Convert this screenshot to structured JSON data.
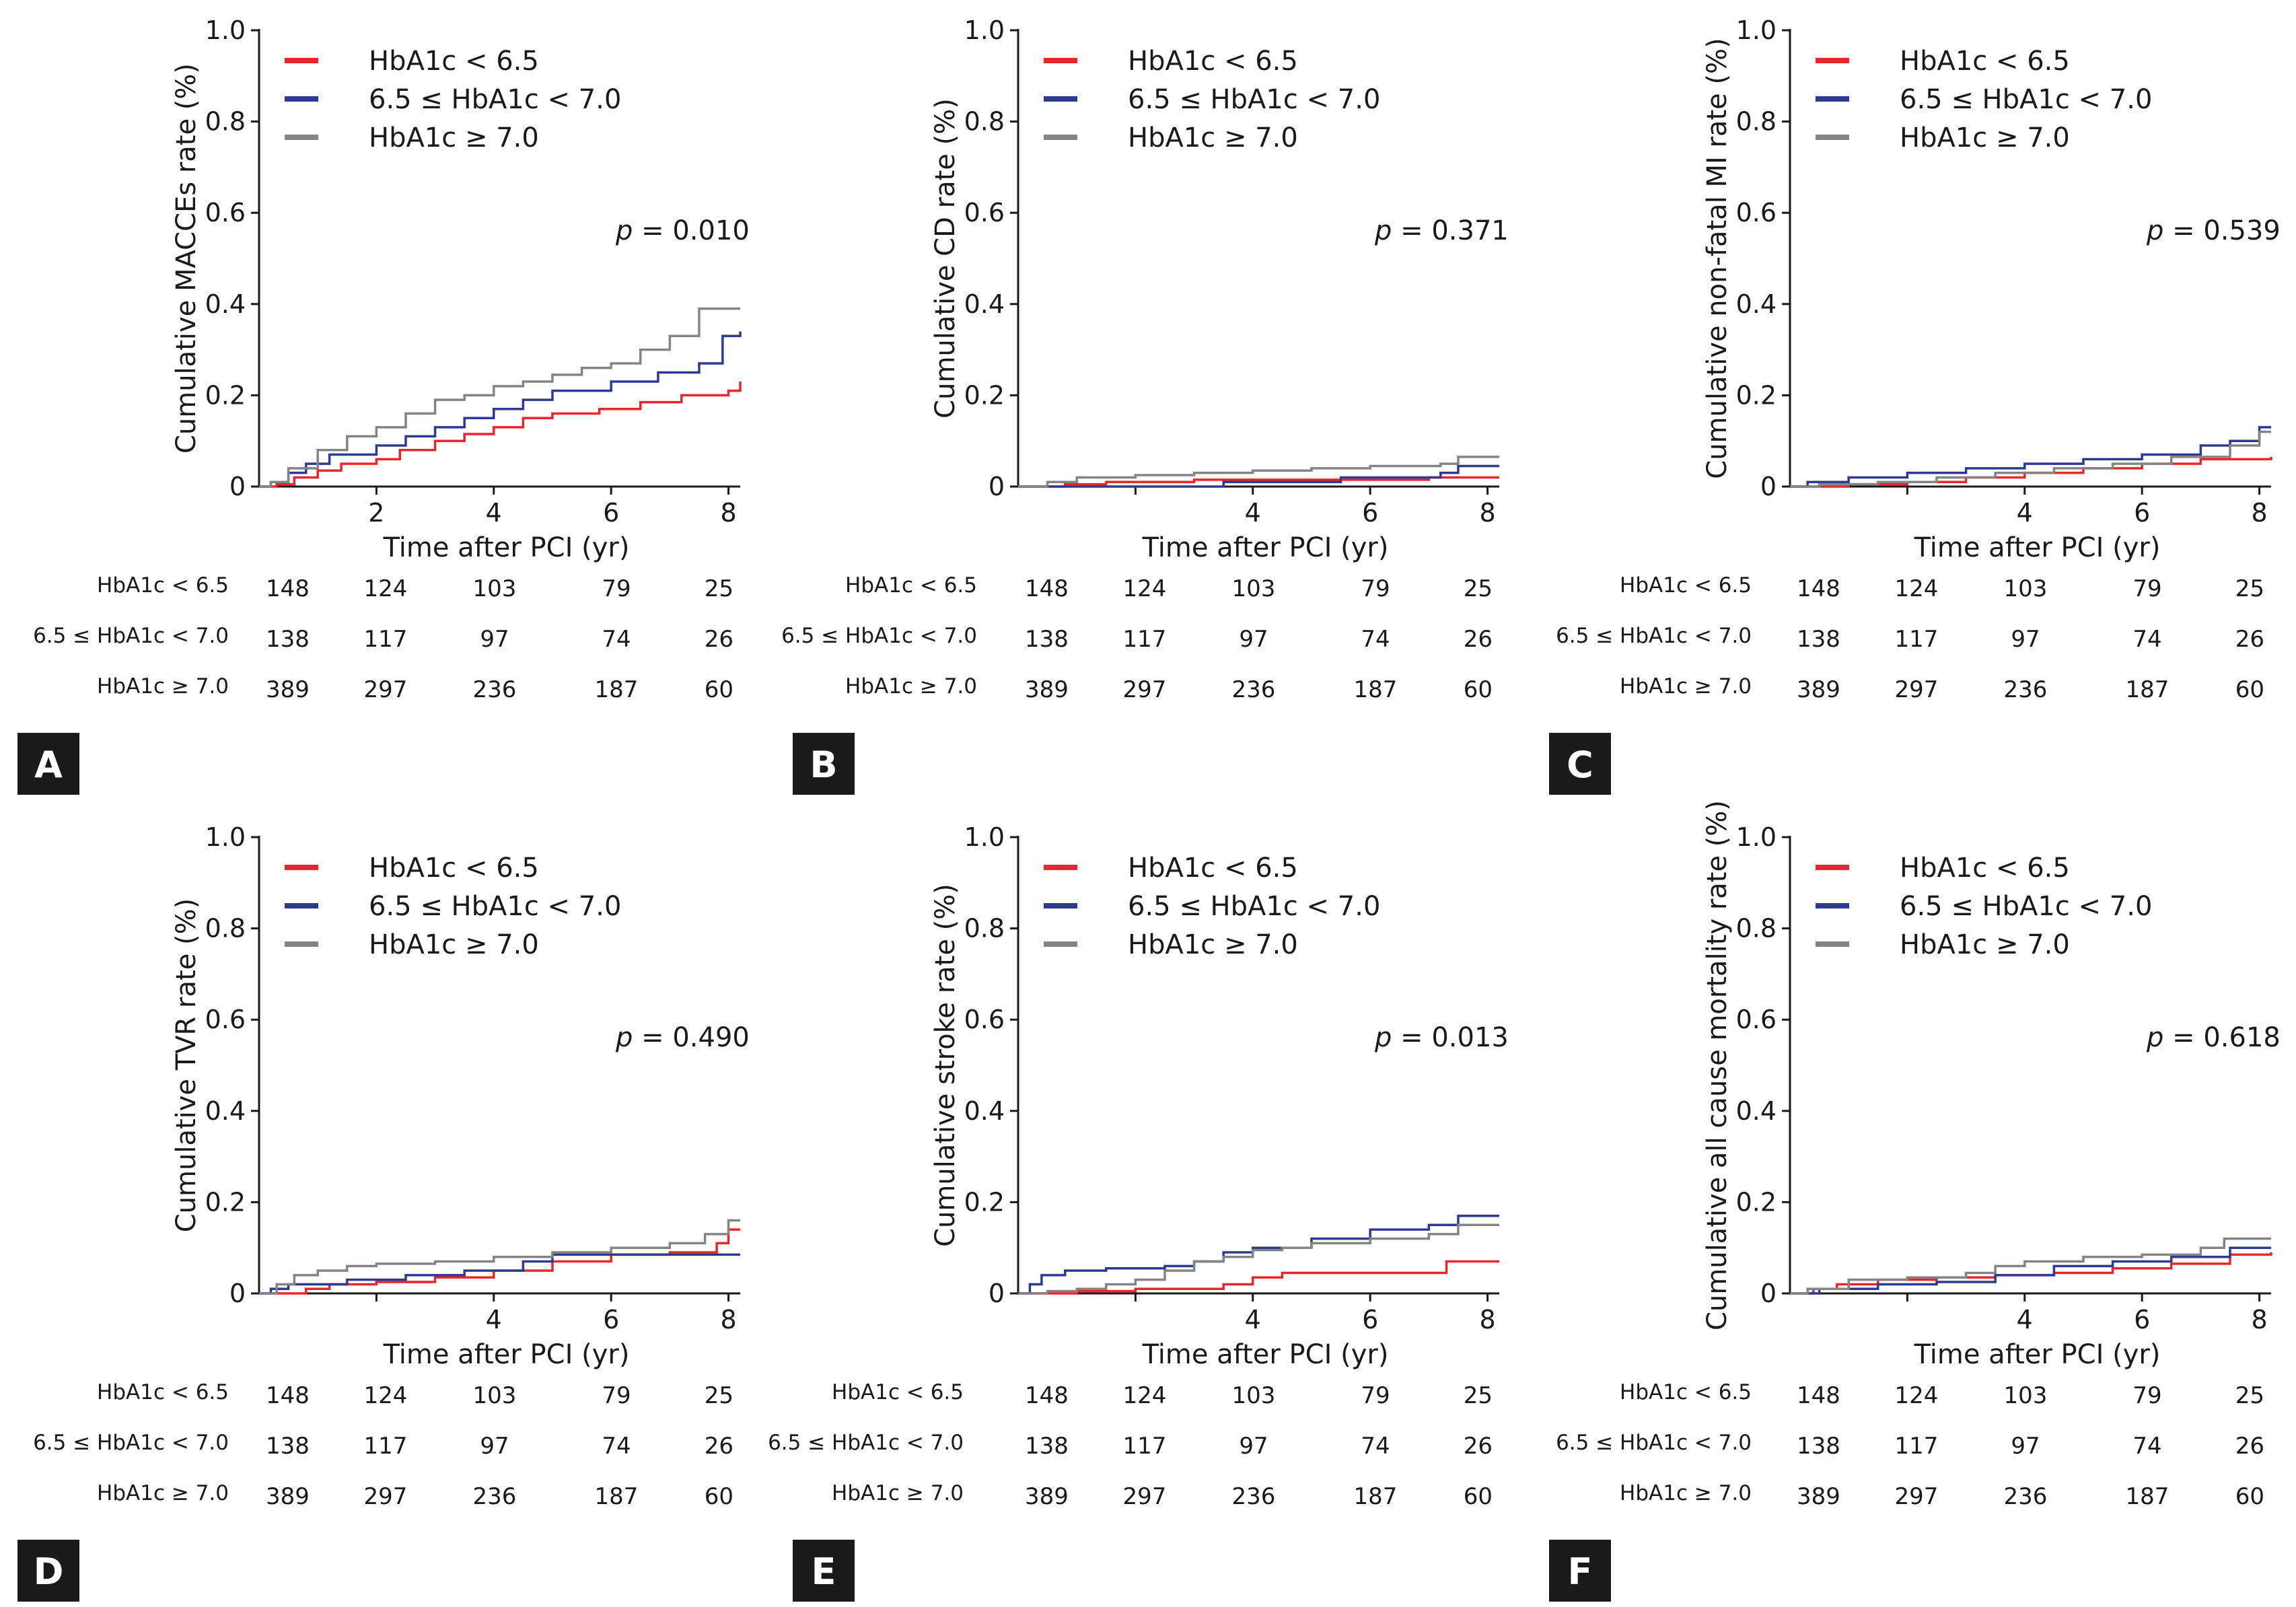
{
  "figure": {
    "colors": {
      "low": "#e8262d",
      "mid": "#2e3a92",
      "high": "#848484",
      "axis": "#1a1a1a",
      "badge": "#1a1a1a"
    },
    "series_names": [
      "HbA1c < 6.5",
      "6.5 ≤ HbA1c < 7.0",
      "HbA1c ≥ 7.0"
    ],
    "risk_labels": [
      "HbA1c < 6.5",
      "6.5 ≤ HbA1c < 7.0",
      "HbA1c ≥ 7.0"
    ]
  },
  "chart_data": [
    {
      "type": "line",
      "panel": "A",
      "ylabel": "Cumulative MACCEs rate (%)",
      "xlabel": "Time after PCI (yr)",
      "p_prefix": "p",
      "p_value": "= 0.010",
      "xlim": [
        0,
        8.2
      ],
      "ylim": [
        0,
        1.0
      ],
      "yticks": [
        "0",
        "0.2",
        "0.4",
        "0.6",
        "0.8",
        "1.0"
      ],
      "yticks_values": [
        0,
        0.2,
        0.4,
        0.6,
        0.8,
        1.0
      ],
      "xticks": [
        "2",
        "4",
        "6",
        "8"
      ],
      "xticks_values": [
        2,
        4,
        6,
        8
      ],
      "series": [
        {
          "name": "HbA1c < 6.5",
          "color": "#e8262d",
          "x": [
            0,
            0.3,
            0.6,
            1.0,
            1.4,
            2.0,
            2.4,
            3.0,
            3.5,
            4.0,
            4.5,
            5.0,
            5.8,
            6.5,
            7.2,
            8.0,
            8.2
          ],
          "y": [
            0,
            0.005,
            0.02,
            0.035,
            0.05,
            0.06,
            0.08,
            0.1,
            0.115,
            0.13,
            0.15,
            0.16,
            0.17,
            0.185,
            0.2,
            0.21,
            0.23
          ]
        },
        {
          "name": "6.5 ≤ HbA1c < 7.0",
          "color": "#2e3a92",
          "x": [
            0,
            0.2,
            0.5,
            0.8,
            1.2,
            2.0,
            2.5,
            3.0,
            3.5,
            4.0,
            4.5,
            5.0,
            6.0,
            6.8,
            7.5,
            7.9,
            8.2
          ],
          "y": [
            0,
            0.01,
            0.03,
            0.05,
            0.07,
            0.09,
            0.11,
            0.13,
            0.15,
            0.17,
            0.19,
            0.21,
            0.23,
            0.25,
            0.27,
            0.33,
            0.34
          ]
        },
        {
          "name": "HbA1c ≥ 7.0",
          "color": "#848484",
          "x": [
            0,
            0.2,
            0.5,
            1.0,
            1.5,
            2.0,
            2.5,
            3.0,
            3.5,
            4.0,
            4.5,
            5.0,
            5.5,
            6.0,
            6.5,
            7.0,
            7.5,
            8.2
          ],
          "y": [
            0,
            0.01,
            0.04,
            0.08,
            0.11,
            0.13,
            0.16,
            0.19,
            0.2,
            0.22,
            0.23,
            0.245,
            0.26,
            0.27,
            0.3,
            0.33,
            0.39,
            0.39
          ]
        }
      ],
      "risk_table": [
        [
          "148",
          "124",
          "103",
          "79",
          "25"
        ],
        [
          "138",
          "117",
          "97",
          "74",
          "26"
        ],
        [
          "389",
          "297",
          "236",
          "187",
          "60"
        ]
      ]
    },
    {
      "type": "line",
      "panel": "B",
      "ylabel": "Cumulative CD rate (%)",
      "xlabel": "Time after PCI (yr)",
      "p_prefix": "p",
      "p_value": "= 0.371",
      "xlim": [
        0,
        8.2
      ],
      "ylim": [
        0,
        1.0
      ],
      "yticks": [
        "0",
        "0.2",
        "0.4",
        "0.6",
        "0.8",
        "1.0"
      ],
      "yticks_values": [
        0,
        0.2,
        0.4,
        0.6,
        0.8,
        1.0
      ],
      "xticks": [
        "4",
        "6",
        "8"
      ],
      "xticks_values": [
        4,
        6,
        8
      ],
      "series": [
        {
          "name": "HbA1c < 6.5",
          "color": "#e8262d",
          "x": [
            0,
            0.8,
            1.5,
            3.0,
            4.0,
            7.0,
            8.2
          ],
          "y": [
            0,
            0.005,
            0.01,
            0.015,
            0.015,
            0.02,
            0.02
          ]
        },
        {
          "name": "6.5 ≤ HbA1c < 7.0",
          "color": "#2e3a92",
          "x": [
            0,
            1.0,
            3.5,
            5.5,
            7.2,
            7.5,
            8.2
          ],
          "y": [
            0,
            0.0,
            0.01,
            0.02,
            0.03,
            0.045,
            0.045
          ]
        },
        {
          "name": "HbA1c ≥ 7.0",
          "color": "#848484",
          "x": [
            0,
            0.5,
            1.0,
            2.0,
            3.0,
            4.0,
            5.0,
            6.0,
            7.2,
            7.5,
            8.2
          ],
          "y": [
            0,
            0.01,
            0.02,
            0.025,
            0.03,
            0.035,
            0.04,
            0.045,
            0.05,
            0.065,
            0.065
          ]
        }
      ],
      "risk_table": [
        [
          "148",
          "124",
          "103",
          "79",
          "25"
        ],
        [
          "138",
          "117",
          "97",
          "74",
          "26"
        ],
        [
          "389",
          "297",
          "236",
          "187",
          "60"
        ]
      ]
    },
    {
      "type": "line",
      "panel": "C",
      "ylabel": "Cumulative non-fatal MI rate (%)",
      "xlabel": "Time after PCI (yr)",
      "p_prefix": "p",
      "p_value": "= 0.539",
      "xlim": [
        0,
        8.2
      ],
      "ylim": [
        0,
        1.0
      ],
      "yticks": [
        "0",
        "0.2",
        "0.4",
        "0.6",
        "0.8",
        "1.0"
      ],
      "yticks_values": [
        0,
        0.2,
        0.4,
        0.6,
        0.8,
        1.0
      ],
      "xticks": [
        "4",
        "6",
        "8"
      ],
      "xticks_values": [
        4,
        6,
        8
      ],
      "series": [
        {
          "name": "HbA1c < 6.5",
          "color": "#e8262d",
          "x": [
            0,
            1.0,
            2.0,
            3.0,
            4.0,
            5.0,
            6.0,
            7.0,
            8.2
          ],
          "y": [
            0,
            0.005,
            0.01,
            0.02,
            0.03,
            0.04,
            0.05,
            0.06,
            0.065
          ]
        },
        {
          "name": "6.5 ≤ HbA1c < 7.0",
          "color": "#2e3a92",
          "x": [
            0,
            0.3,
            1.0,
            2.0,
            3.0,
            4.0,
            5.0,
            6.0,
            7.0,
            7.5,
            8.0,
            8.2
          ],
          "y": [
            0,
            0.01,
            0.02,
            0.03,
            0.04,
            0.05,
            0.06,
            0.07,
            0.09,
            0.1,
            0.13,
            0.13
          ]
        },
        {
          "name": "HbA1c ≥ 7.0",
          "color": "#848484",
          "x": [
            0,
            0.5,
            1.5,
            2.5,
            3.5,
            4.5,
            5.5,
            6.5,
            7.5,
            8.0,
            8.2
          ],
          "y": [
            0,
            0.005,
            0.01,
            0.02,
            0.03,
            0.04,
            0.05,
            0.065,
            0.09,
            0.12,
            0.12
          ]
        }
      ],
      "risk_table": [
        [
          "148",
          "124",
          "103",
          "79",
          "25"
        ],
        [
          "138",
          "117",
          "97",
          "74",
          "26"
        ],
        [
          "389",
          "297",
          "236",
          "187",
          "60"
        ]
      ]
    },
    {
      "type": "line",
      "panel": "D",
      "ylabel": "Cumulative TVR rate (%)",
      "xlabel": "Time after PCI (yr)",
      "p_prefix": "p",
      "p_value": "= 0.490",
      "xlim": [
        0,
        8.2
      ],
      "ylim": [
        0,
        1.0
      ],
      "yticks": [
        "0",
        "0.2",
        "0.4",
        "0.6",
        "0.8",
        "1.0"
      ],
      "yticks_values": [
        0,
        0.2,
        0.4,
        0.6,
        0.8,
        1.0
      ],
      "xticks": [
        "4",
        "6",
        "8"
      ],
      "xticks_values": [
        4,
        6,
        8
      ],
      "series": [
        {
          "name": "HbA1c < 6.5",
          "color": "#e8262d",
          "x": [
            0,
            0.8,
            1.2,
            2.0,
            3.0,
            4.0,
            5.0,
            6.0,
            7.0,
            7.8,
            8.0,
            8.2
          ],
          "y": [
            0,
            0.01,
            0.02,
            0.025,
            0.035,
            0.05,
            0.07,
            0.085,
            0.09,
            0.11,
            0.14,
            0.14
          ]
        },
        {
          "name": "6.5 ≤ HbA1c < 7.0",
          "color": "#2e3a92",
          "x": [
            0,
            0.2,
            0.5,
            1.5,
            2.5,
            3.5,
            4.5,
            5.0,
            6.0,
            7.0,
            8.2
          ],
          "y": [
            0,
            0.01,
            0.02,
            0.03,
            0.04,
            0.05,
            0.07,
            0.085,
            0.085,
            0.085,
            0.085
          ]
        },
        {
          "name": "HbA1c ≥ 7.0",
          "color": "#848484",
          "x": [
            0,
            0.3,
            0.6,
            1.0,
            1.5,
            2.0,
            3.0,
            4.0,
            5.0,
            6.0,
            7.0,
            7.6,
            8.0,
            8.2
          ],
          "y": [
            0,
            0.02,
            0.04,
            0.05,
            0.06,
            0.065,
            0.07,
            0.08,
            0.09,
            0.1,
            0.11,
            0.13,
            0.16,
            0.16
          ]
        }
      ],
      "risk_table": [
        [
          "148",
          "124",
          "103",
          "79",
          "25"
        ],
        [
          "138",
          "117",
          "97",
          "74",
          "26"
        ],
        [
          "389",
          "297",
          "236",
          "187",
          "60"
        ]
      ]
    },
    {
      "type": "line",
      "panel": "E",
      "ylabel": "Cumulative stroke rate (%)",
      "xlabel": "Time after PCI (yr)",
      "p_prefix": "p",
      "p_value": "= 0.013",
      "xlim": [
        0,
        8.2
      ],
      "ylim": [
        0,
        1.0
      ],
      "yticks": [
        "0",
        "0.2",
        "0.4",
        "0.6",
        "0.8",
        "1.0"
      ],
      "yticks_values": [
        0,
        0.2,
        0.4,
        0.6,
        0.8,
        1.0
      ],
      "xticks": [
        "4",
        "6",
        "8"
      ],
      "xticks_values": [
        4,
        6,
        8
      ],
      "series": [
        {
          "name": "HbA1c < 6.5",
          "color": "#e8262d",
          "x": [
            0,
            1.0,
            2.0,
            3.0,
            3.5,
            4.0,
            4.5,
            5.5,
            6.5,
            7.3,
            8.2
          ],
          "y": [
            0,
            0.005,
            0.01,
            0.01,
            0.02,
            0.035,
            0.045,
            0.045,
            0.045,
            0.07,
            0.07
          ]
        },
        {
          "name": "6.5 ≤ HbA1c < 7.0",
          "color": "#2e3a92",
          "x": [
            0,
            0.2,
            0.4,
            0.8,
            1.5,
            2.5,
            3.0,
            3.5,
            4.0,
            5.0,
            6.0,
            7.0,
            7.5,
            8.2
          ],
          "y": [
            0,
            0.02,
            0.04,
            0.05,
            0.055,
            0.06,
            0.07,
            0.09,
            0.1,
            0.12,
            0.14,
            0.15,
            0.17,
            0.17
          ]
        },
        {
          "name": "HbA1c ≥ 7.0",
          "color": "#848484",
          "x": [
            0,
            0.5,
            1.0,
            1.5,
            2.0,
            2.5,
            3.0,
            3.5,
            4.0,
            4.5,
            5.0,
            6.0,
            7.0,
            7.5,
            8.2
          ],
          "y": [
            0,
            0.005,
            0.01,
            0.02,
            0.03,
            0.05,
            0.07,
            0.08,
            0.095,
            0.1,
            0.11,
            0.12,
            0.13,
            0.15,
            0.15
          ]
        }
      ],
      "risk_table": [
        [
          "148",
          "124",
          "103",
          "79",
          "25"
        ],
        [
          "138",
          "117",
          "97",
          "74",
          "26"
        ],
        [
          "389",
          "297",
          "236",
          "187",
          "60"
        ]
      ]
    },
    {
      "type": "line",
      "panel": "F",
      "ylabel": "Cumulative all cause mortality rate (%)",
      "xlabel": "Time after PCI (yr)",
      "p_prefix": "p",
      "p_value": "= 0.618",
      "xlim": [
        0,
        8.2
      ],
      "ylim": [
        0,
        1.0
      ],
      "yticks": [
        "0",
        "0.2",
        "0.4",
        "0.6",
        "0.8",
        "1.0"
      ],
      "yticks_values": [
        0,
        0.2,
        0.4,
        0.6,
        0.8,
        1.0
      ],
      "xticks": [
        "4",
        "6",
        "8"
      ],
      "xticks_values": [
        4,
        6,
        8
      ],
      "series": [
        {
          "name": "HbA1c < 6.5",
          "color": "#e8262d",
          "x": [
            0,
            0.4,
            0.8,
            1.5,
            2.5,
            3.5,
            4.5,
            5.5,
            6.5,
            7.5,
            8.2
          ],
          "y": [
            0,
            0.01,
            0.02,
            0.03,
            0.035,
            0.04,
            0.045,
            0.055,
            0.065,
            0.085,
            0.09
          ]
        },
        {
          "name": "6.5 ≤ HbA1c < 7.0",
          "color": "#2e3a92",
          "x": [
            0,
            0.5,
            1.5,
            2.5,
            3.5,
            4.5,
            5.5,
            6.5,
            7.5,
            8.2
          ],
          "y": [
            0,
            0.01,
            0.02,
            0.025,
            0.04,
            0.06,
            0.07,
            0.08,
            0.1,
            0.1
          ]
        },
        {
          "name": "HbA1c ≥ 7.0",
          "color": "#848484",
          "x": [
            0,
            0.3,
            1.0,
            2.0,
            3.0,
            3.5,
            4.0,
            5.0,
            6.0,
            7.0,
            7.4,
            8.2
          ],
          "y": [
            0,
            0.01,
            0.03,
            0.035,
            0.045,
            0.06,
            0.07,
            0.08,
            0.085,
            0.1,
            0.12,
            0.12
          ]
        }
      ],
      "risk_table": [
        [
          "148",
          "124",
          "103",
          "79",
          "25"
        ],
        [
          "138",
          "117",
          "97",
          "74",
          "26"
        ],
        [
          "389",
          "297",
          "236",
          "187",
          "60"
        ]
      ]
    }
  ]
}
